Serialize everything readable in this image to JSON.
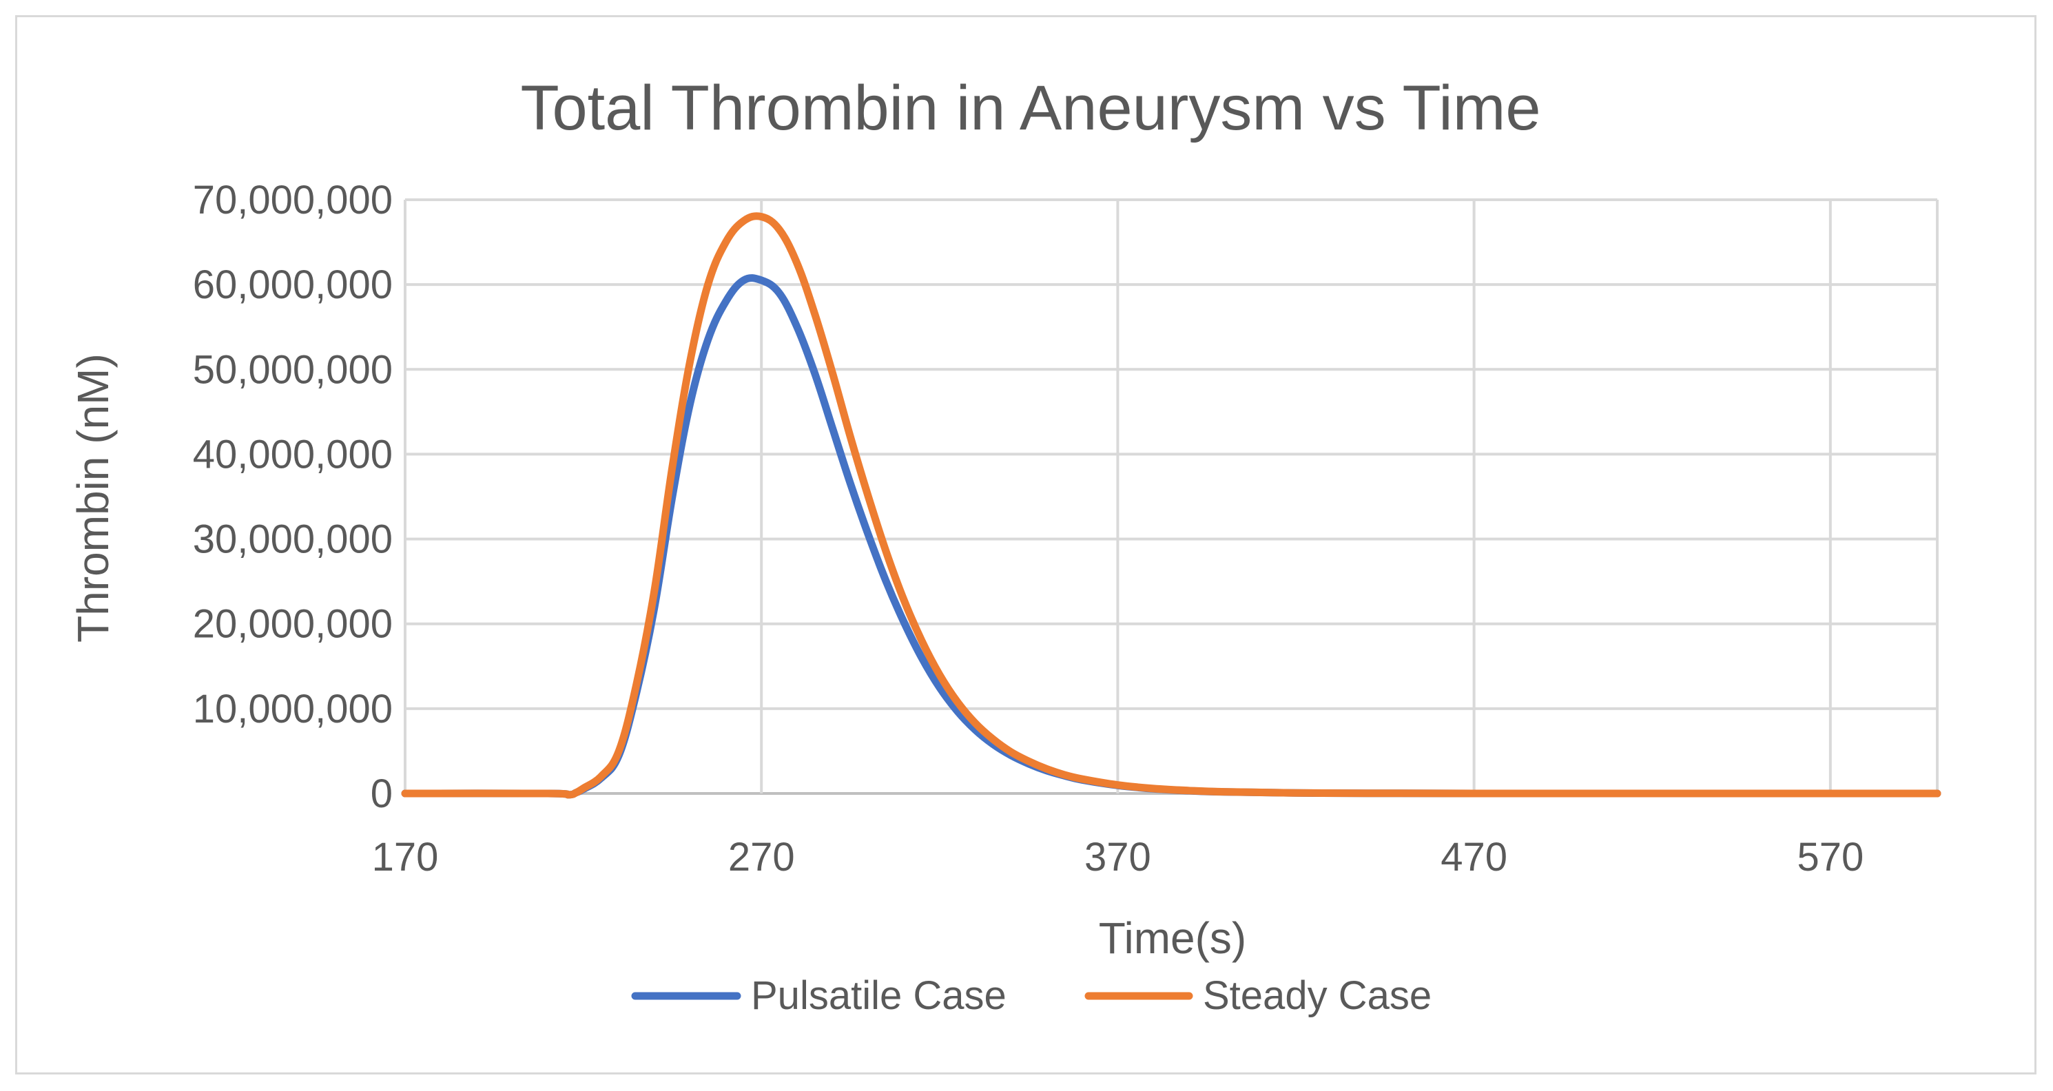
{
  "chart_data": {
    "type": "line",
    "title": "Total Thrombin in Aneurysm vs Time",
    "xlabel": "Time(s)",
    "ylabel": "Thrombin (nM)",
    "xlim": [
      170,
      600
    ],
    "ylim": [
      0,
      70000000
    ],
    "x_ticks": [
      170,
      270,
      370,
      470,
      570
    ],
    "x_tick_labels": [
      "170",
      "270",
      "370",
      "470",
      "570"
    ],
    "y_ticks": [
      0,
      10000000,
      20000000,
      30000000,
      40000000,
      50000000,
      60000000,
      70000000
    ],
    "y_tick_labels": [
      "0",
      "10,000,000",
      "20,000,000",
      "30,000,000",
      "40,000,000",
      "50,000,000",
      "60,000,000",
      "70,000,000"
    ],
    "grid": true,
    "legend_position": "bottom",
    "series": [
      {
        "name": "Pulsatile Case",
        "color": "#4472C4",
        "x": [
          170,
          210,
          216,
          218,
          220,
          225,
          230,
          235,
          240,
          245,
          250,
          255,
          260,
          265,
          270,
          275,
          280,
          285,
          290,
          295,
          300,
          305,
          310,
          315,
          320,
          325,
          330,
          335,
          340,
          345,
          350,
          355,
          360,
          370,
          380,
          390,
          400,
          420,
          440,
          470,
          500,
          600
        ],
        "values": [
          0,
          0,
          -150000,
          100000,
          500000,
          1800000,
          4500000,
          12000000,
          22000000,
          35000000,
          46000000,
          53500000,
          58000000,
          60500000,
          60500000,
          59000000,
          55000000,
          49500000,
          43000000,
          36500000,
          30500000,
          25000000,
          20200000,
          16000000,
          12500000,
          9700000,
          7500000,
          5800000,
          4500000,
          3500000,
          2700000,
          2100000,
          1600000,
          950000,
          550000,
          320000,
          180000,
          60000,
          20000,
          5000,
          0,
          0
        ]
      },
      {
        "name": "Steady Case",
        "color": "#ED7D31",
        "x": [
          170,
          210,
          216,
          218,
          220,
          225,
          230,
          235,
          240,
          245,
          250,
          255,
          260,
          265,
          270,
          275,
          280,
          285,
          290,
          295,
          300,
          305,
          310,
          315,
          320,
          325,
          330,
          335,
          340,
          345,
          350,
          355,
          360,
          370,
          380,
          390,
          400,
          420,
          440,
          470,
          500,
          600
        ],
        "values": [
          0,
          0,
          -150000,
          100000,
          600000,
          2000000,
          5000000,
          13000000,
          24000000,
          38500000,
          51000000,
          60000000,
          65000000,
          67500000,
          68000000,
          66500000,
          62500000,
          56500000,
          49500000,
          42000000,
          35000000,
          28500000,
          22800000,
          18000000,
          14000000,
          10800000,
          8300000,
          6400000,
          4900000,
          3800000,
          2900000,
          2200000,
          1700000,
          1000000,
          580000,
          340000,
          190000,
          65000,
          22000,
          5000,
          0,
          0
        ]
      }
    ]
  }
}
